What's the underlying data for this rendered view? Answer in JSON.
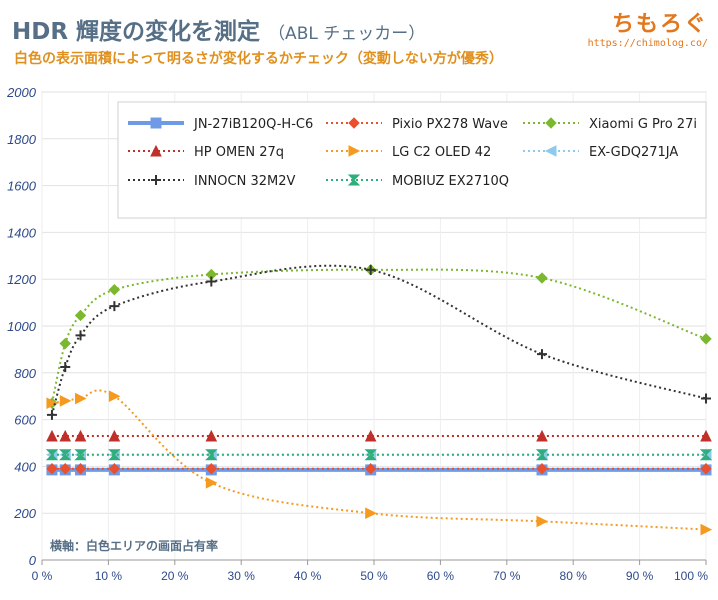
{
  "header": {
    "title": "HDR 輝度の変化を測定",
    "title_note": "（ABL チェッカー）",
    "subtitle": "白色の表示面積によって明るさが変化するかチェック（変動しない方が優秀）",
    "brand": "ちもろぐ",
    "brand_url": "https://chimolog.co/"
  },
  "chart_data": {
    "type": "line",
    "annotation": "横軸：白色エリアの画面占有率",
    "ylim": [
      0,
      2000
    ],
    "yticks": [
      0,
      200,
      400,
      600,
      800,
      1000,
      1200,
      1400,
      1600,
      1800,
      2000
    ],
    "xlim": [
      0,
      100
    ],
    "xticks": [
      "0 %",
      "10 %",
      "20 %",
      "30 %",
      "40 %",
      "50 %",
      "60 %",
      "70 %",
      "80 %",
      "90 %",
      "100 %"
    ],
    "grid": true,
    "legend_position": "top",
    "series": [
      {
        "name": "JN-27iB120Q-H-C6",
        "color": "#6f9be6",
        "marker": "square",
        "style": "solid",
        "x": [
          1.5,
          3.5,
          5.8,
          10.9,
          25.5,
          49.5,
          75.3,
          100
        ],
        "y": [
          385,
          385,
          385,
          385,
          385,
          385,
          385,
          385
        ]
      },
      {
        "name": "Pixio PX278 Wave",
        "color": "#e8502f",
        "marker": "diamond",
        "style": "dotted",
        "x": [
          1.5,
          3.5,
          5.8,
          10.9,
          25.5,
          49.5,
          75.3,
          100
        ],
        "y": [
          390,
          390,
          390,
          390,
          390,
          390,
          390,
          390
        ]
      },
      {
        "name": "Xiaomi G Pro 27i",
        "color": "#7cb82f",
        "marker": "diamond",
        "style": "dotted",
        "x": [
          1.5,
          3.5,
          5.8,
          10.9,
          25.5,
          49.5,
          75.3,
          100
        ],
        "y": [
          670,
          925,
          1045,
          1155,
          1220,
          1240,
          1205,
          945
        ]
      },
      {
        "name": "HP OMEN 27q",
        "color": "#c0302a",
        "marker": "triangle",
        "style": "dotted",
        "x": [
          1.5,
          3.5,
          5.8,
          10.9,
          25.5,
          49.5,
          75.3,
          100
        ],
        "y": [
          530,
          530,
          530,
          530,
          530,
          530,
          530,
          530
        ]
      },
      {
        "name": "LG C2 OLED 42",
        "color": "#f59a1e",
        "marker": "triangle-right",
        "style": "dotted",
        "x": [
          1.5,
          3.5,
          5.8,
          10.9,
          25.5,
          49.5,
          75.3,
          100
        ],
        "y": [
          670,
          680,
          690,
          700,
          330,
          200,
          165,
          130
        ]
      },
      {
        "name": "EX-GDQ271JA",
        "color": "#8fc9ec",
        "marker": "triangle-left",
        "style": "dotted",
        "x": [
          1.5,
          3.5,
          5.8,
          10.9,
          25.5,
          49.5,
          75.3,
          100
        ],
        "y": [
          450,
          450,
          450,
          450,
          450,
          450,
          450,
          450
        ]
      },
      {
        "name": "INNOCN 32M2V",
        "color": "#333333",
        "marker": "plus",
        "style": "dotted",
        "x": [
          1.5,
          3.5,
          5.8,
          10.9,
          25.5,
          49.5,
          75.3,
          100
        ],
        "y": [
          620,
          825,
          960,
          1085,
          1190,
          1240,
          880,
          690
        ]
      },
      {
        "name": "MOBIUZ EX2710Q",
        "color": "#2fae7c",
        "marker": "hourglass",
        "style": "dotted",
        "x": [
          1.5,
          3.5,
          5.8,
          10.9,
          25.5,
          49.5,
          75.3,
          100
        ],
        "y": [
          450,
          450,
          450,
          450,
          450,
          450,
          450,
          450
        ]
      }
    ]
  }
}
